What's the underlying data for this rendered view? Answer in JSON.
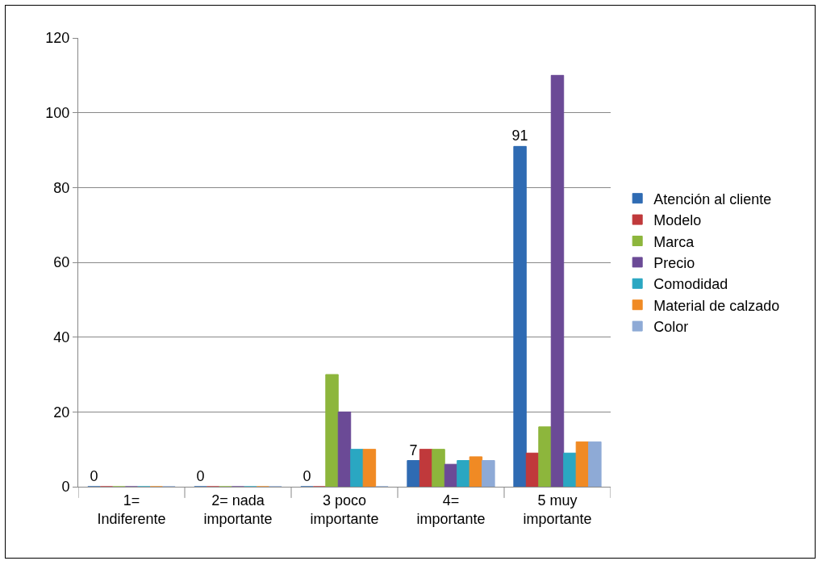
{
  "chart_data": {
    "type": "bar",
    "categories": [
      "1= Indiferente",
      "2= nada importante",
      "3 poco importante",
      "4= importante",
      "5 muy importante"
    ],
    "series": [
      {
        "name": "Atención al cliente",
        "color": "#2f6bb3",
        "values": [
          0,
          0,
          0,
          7,
          91
        ],
        "value_labels": [
          "0",
          "0",
          "0",
          "7",
          "91"
        ]
      },
      {
        "name": "Modelo",
        "color": "#c0393b",
        "values": [
          0,
          0,
          0,
          10,
          9
        ]
      },
      {
        "name": "Marca",
        "color": "#8db63c",
        "values": [
          0,
          0,
          30,
          10,
          16
        ]
      },
      {
        "name": "Precio",
        "color": "#6b4a96",
        "values": [
          0,
          0,
          20,
          6,
          110
        ]
      },
      {
        "name": "Comodidad",
        "color": "#2aa7c2",
        "values": [
          0,
          0,
          10,
          7,
          9
        ]
      },
      {
        "name": "Material de calzado",
        "color": "#f08a24",
        "values": [
          0,
          0,
          10,
          8,
          12
        ]
      },
      {
        "name": "Color",
        "color": "#8eaad6",
        "values": [
          0,
          0,
          0,
          7,
          12
        ]
      }
    ],
    "ylim": [
      0,
      120
    ],
    "yticks": [
      0,
      20,
      40,
      60,
      80,
      100,
      120
    ],
    "grid": "y",
    "legend": "right"
  }
}
